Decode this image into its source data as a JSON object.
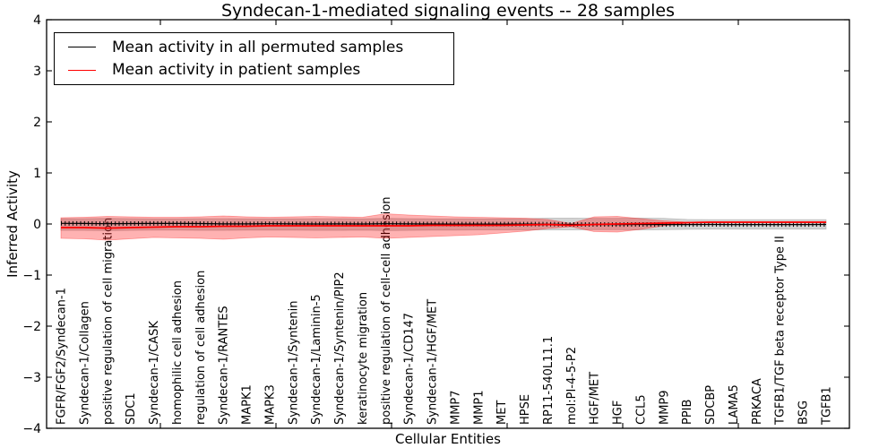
{
  "title": "Syndecan-1-mediated signaling events -- 28 samples",
  "legend": {
    "items": [
      {
        "label": "Mean activity in all permuted samples",
        "color": "#000000"
      },
      {
        "label": "Mean activity in patient samples",
        "color": "#ff0000"
      }
    ]
  },
  "axes": {
    "y_label": "Inferred Activity",
    "x_label": "Cellular Entities",
    "y_tick_labels": [
      "4",
      "3",
      "2",
      "1",
      "0",
      "−1",
      "−2",
      "−3",
      "−4"
    ],
    "y_tick_values": [
      4,
      3,
      2,
      1,
      0,
      -1,
      -2,
      -3,
      -4
    ]
  },
  "chart_data": {
    "type": "line",
    "title": "Syndecan-1-mediated signaling events -- 28 samples",
    "xlabel": "Cellular Entities",
    "ylabel": "Inferred Activity",
    "ylim": [
      -4,
      4
    ],
    "grid": false,
    "legend_position": "upper left",
    "categories": [
      "FGFR/FGF2/Syndecan-1",
      "Syndecan-1/Collagen",
      "positive regulation of cell migration",
      "SDC1",
      "Syndecan-1/CASK",
      "homophilic cell adhesion",
      "regulation of cell adhesion",
      "Syndecan-1/RANTES",
      "MAPK1",
      "MAPK3",
      "Syndecan-1/Syntenin",
      "Syndecan-1/Laminin-5",
      "Syndecan-1/Syntenin/PIP2",
      "keratinocyte migration",
      "positive regulation of cell-cell adhesion",
      "Syndecan-1/CD147",
      "Syndecan-1/HGF/MET",
      "MMP7",
      "MMP1",
      "MET",
      "HPSE",
      "RP11-540L11.1",
      "mol:PI-4-5-P2",
      "HGF/MET",
      "HGF",
      "CCL5",
      "MMP9",
      "PPIB",
      "SDCBP",
      "LAMA5",
      "PRKACA",
      "TGFB1/TGF beta receptor Type II",
      "BSG",
      "TGFB1"
    ],
    "series": [
      {
        "name": "Mean activity in all permuted samples",
        "color": "#000000",
        "band_color": "rgba(128,128,128,0.35)",
        "values": [
          0.012,
          0.01,
          0.006,
          0.008,
          0.011,
          0.01,
          0.009,
          0.002,
          0.001,
          0.005,
          0.001,
          0.0,
          0.001,
          0.0,
          0.006,
          0.001,
          0.0,
          -0.001,
          -0.001,
          -0.002,
          -0.002,
          -0.003,
          -0.008,
          -0.009,
          -0.01,
          -0.009,
          -0.01,
          -0.01,
          -0.009,
          -0.01,
          -0.01,
          -0.01,
          -0.01,
          -0.009
        ],
        "band_upper": [
          0.105,
          0.105,
          0.11,
          0.105,
          0.1,
          0.1,
          0.105,
          0.105,
          0.1,
          0.1,
          0.1,
          0.105,
          0.105,
          0.1,
          0.11,
          0.105,
          0.1,
          0.1,
          0.1,
          0.1,
          0.105,
          0.115,
          0.115,
          0.11,
          0.11,
          0.115,
          0.11,
          0.09,
          0.085,
          0.085,
          0.085,
          0.085,
          0.085,
          0.085
        ],
        "band_lower": [
          -0.125,
          -0.125,
          -0.13,
          -0.125,
          -0.12,
          -0.12,
          -0.125,
          -0.125,
          -0.12,
          -0.12,
          -0.12,
          -0.125,
          -0.125,
          -0.12,
          -0.13,
          -0.125,
          -0.12,
          -0.12,
          -0.115,
          -0.115,
          -0.115,
          -0.115,
          -0.115,
          -0.11,
          -0.11,
          -0.115,
          -0.11,
          -0.105,
          -0.1,
          -0.1,
          -0.1,
          -0.1,
          -0.1,
          -0.1
        ]
      },
      {
        "name": "Mean activity in patient samples",
        "color": "#ff0000",
        "band_color": "rgba(255,0,0,0.30)",
        "values": [
          -0.07,
          -0.07,
          -0.08,
          -0.07,
          -0.061,
          -0.053,
          -0.053,
          -0.044,
          -0.044,
          -0.035,
          -0.035,
          -0.035,
          -0.035,
          -0.035,
          -0.035,
          -0.035,
          -0.026,
          -0.026,
          -0.026,
          -0.026,
          -0.018,
          -0.009,
          -0.026,
          -0.009,
          0.0,
          0.009,
          0.018,
          0.026,
          0.035,
          0.035,
          0.035,
          0.035,
          0.035,
          0.035
        ],
        "band_upper": [
          0.123,
          0.132,
          0.149,
          0.14,
          0.132,
          0.132,
          0.14,
          0.158,
          0.14,
          0.132,
          0.14,
          0.149,
          0.14,
          0.132,
          0.202,
          0.175,
          0.158,
          0.14,
          0.132,
          0.123,
          0.114,
          0.088,
          0.009,
          0.14,
          0.149,
          0.105,
          0.061,
          0.035,
          0.044,
          0.044,
          0.044,
          0.044,
          0.044,
          0.044
        ],
        "band_lower": [
          -0.281,
          -0.289,
          -0.316,
          -0.289,
          -0.263,
          -0.272,
          -0.281,
          -0.298,
          -0.272,
          -0.254,
          -0.263,
          -0.272,
          -0.263,
          -0.254,
          -0.281,
          -0.263,
          -0.246,
          -0.228,
          -0.211,
          -0.175,
          -0.14,
          -0.088,
          -0.053,
          -0.149,
          -0.158,
          -0.105,
          -0.035,
          0.018,
          0.026,
          0.026,
          0.026,
          0.026,
          0.026,
          0.026
        ]
      }
    ]
  }
}
